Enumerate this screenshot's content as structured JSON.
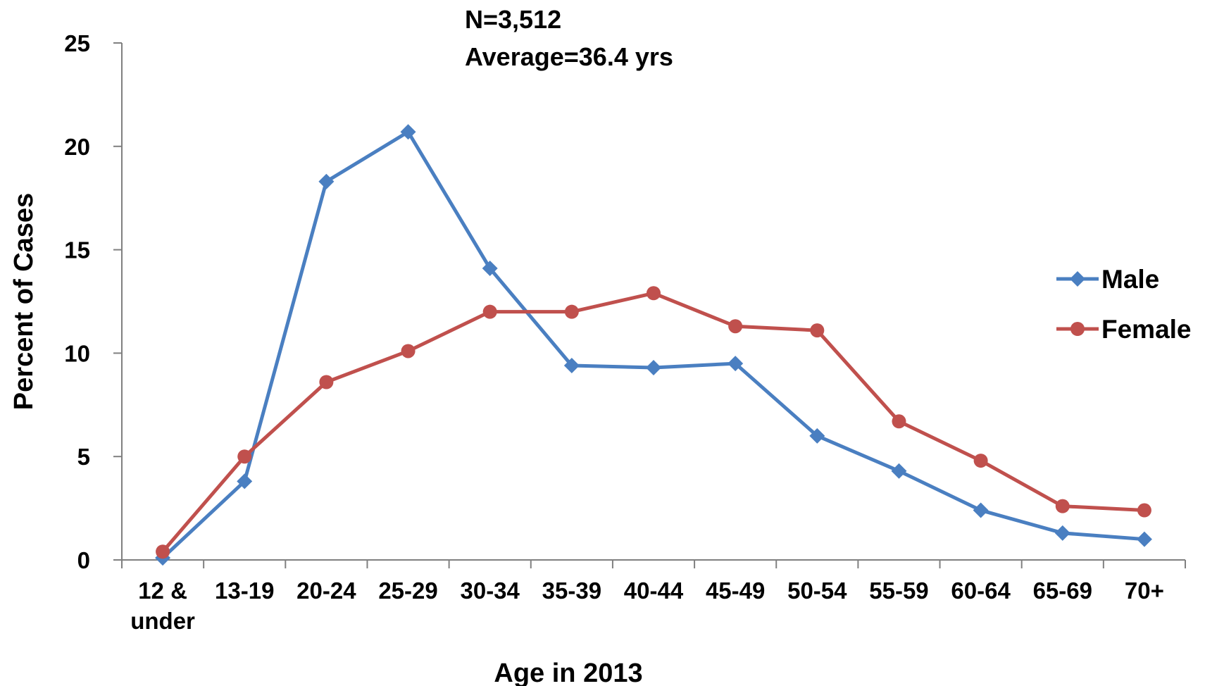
{
  "chart_data": {
    "type": "line",
    "title_lines": [
      "N=3,512",
      "Average=36.4 yrs"
    ],
    "xlabel": "Age in 2013",
    "ylabel": "Percent of Cases",
    "categories": [
      "12 & under",
      "13-19",
      "20-24",
      "25-29",
      "30-34",
      "35-39",
      "40-44",
      "45-49",
      "50-54",
      "55-59",
      "60-64",
      "65-69",
      "70+"
    ],
    "category_lines": [
      [
        "12 &",
        "under"
      ],
      [
        "13-19"
      ],
      [
        "20-24"
      ],
      [
        "25-29"
      ],
      [
        "30-34"
      ],
      [
        "35-39"
      ],
      [
        "40-44"
      ],
      [
        "45-49"
      ],
      [
        "50-54"
      ],
      [
        "55-59"
      ],
      [
        "60-64"
      ],
      [
        "65-69"
      ],
      [
        "70+"
      ]
    ],
    "ylim": [
      0,
      25
    ],
    "yticks": [
      0,
      5,
      10,
      15,
      20,
      25
    ],
    "grid": false,
    "legend_position": "right",
    "series": [
      {
        "name": "Male",
        "color": "#4a7fc1",
        "marker": "diamond",
        "values": [
          0.1,
          3.8,
          18.3,
          20.7,
          14.1,
          9.4,
          9.3,
          9.5,
          6.0,
          4.3,
          2.4,
          1.3,
          1.0
        ]
      },
      {
        "name": "Female",
        "color": "#c0504d",
        "marker": "circle",
        "values": [
          0.4,
          5.0,
          8.6,
          10.1,
          12.0,
          12.0,
          12.9,
          11.3,
          11.1,
          6.7,
          4.8,
          2.6,
          2.4
        ]
      }
    ]
  }
}
